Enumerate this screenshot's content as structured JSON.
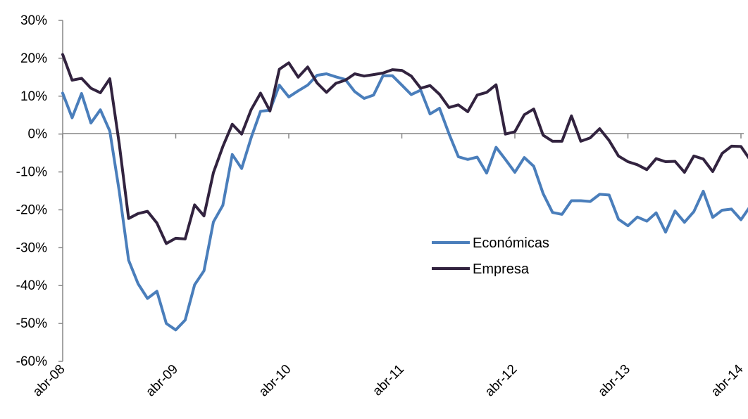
{
  "chart_data": {
    "type": "line",
    "title": "",
    "xlabel": "",
    "ylabel": "",
    "ylim": [
      -60,
      30
    ],
    "y_ticks": [
      -60,
      -50,
      -40,
      -30,
      -20,
      -10,
      0,
      10,
      20,
      30
    ],
    "y_tick_labels": [
      "-60%",
      "-50%",
      "-40%",
      "-30%",
      "-20%",
      "-10%",
      "0%",
      "10%",
      "20%",
      "30%"
    ],
    "x_start": "2008-04",
    "x_tick_labels": [
      "abr-08",
      "abr-09",
      "abr-10",
      "abr-11",
      "abr-12",
      "abr-13",
      "abr-14"
    ],
    "grid": false,
    "legend": "center-right",
    "series": [
      {
        "name": "Económicas",
        "color": "#4a7ebb",
        "values": [
          10.8,
          4.3,
          10.7,
          2.9,
          6.4,
          0.8,
          -15.1,
          -33.3,
          -39.5,
          -43.4,
          -41.5,
          -50.0,
          -51.7,
          -49.1,
          -39.8,
          -36.1,
          -23.2,
          -18.8,
          -5.4,
          -9.1,
          -1.0,
          6.0,
          6.3,
          12.9,
          9.8,
          11.4,
          12.9,
          15.5,
          15.9,
          15.1,
          14.4,
          11.2,
          9.4,
          10.3,
          15.4,
          15.4,
          12.9,
          10.4,
          11.6,
          5.3,
          6.8,
          0.1,
          -6.0,
          -6.7,
          -6.1,
          -10.3,
          -3.5,
          -6.7,
          -10.1,
          -6.2,
          -8.5,
          -15.7,
          -20.7,
          -21.2,
          -17.6,
          -17.6,
          -17.8,
          -15.9,
          -16.1,
          -22.5,
          -24.2,
          -21.9,
          -23.0,
          -20.8,
          -25.9,
          -20.3,
          -23.3,
          -20.5,
          -15.1,
          -22.0,
          -20.1,
          -19.8,
          -22.6,
          -19.0
        ]
      },
      {
        "name": "Empresa",
        "color": "#32233f",
        "values": [
          21.0,
          14.2,
          14.7,
          12.1,
          10.9,
          14.6,
          -2.6,
          -22.3,
          -21.0,
          -20.4,
          -23.5,
          -28.9,
          -27.5,
          -27.7,
          -18.7,
          -21.6,
          -10.2,
          -3.3,
          2.6,
          0.0,
          6.4,
          10.8,
          6.1,
          17.1,
          18.8,
          15.0,
          17.7,
          13.5,
          11.0,
          13.4,
          14.2,
          15.9,
          15.3,
          15.7,
          16.1,
          17.0,
          16.8,
          15.3,
          12.1,
          12.8,
          10.5,
          7.0,
          7.7,
          5.9,
          10.3,
          11.0,
          13.0,
          0.0,
          0.6,
          5.1,
          6.6,
          -0.3,
          -1.9,
          -1.9,
          4.8,
          -1.9,
          -1.0,
          1.4,
          -1.7,
          -5.8,
          -7.3,
          -8.1,
          -9.4,
          -6.5,
          -7.3,
          -7.2,
          -10.1,
          -5.8,
          -6.6,
          -9.9,
          -5.1,
          -3.2,
          -3.3,
          -6.9
        ]
      }
    ]
  }
}
